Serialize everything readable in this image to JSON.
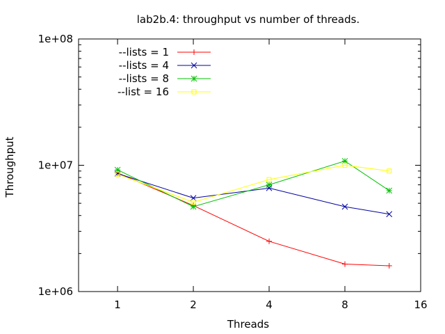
{
  "chart_data": {
    "type": "line",
    "title": "lab2b.4: throughput vs number of threads.",
    "xlabel": "Threads",
    "ylabel": "Throughput",
    "x_scale": "log2",
    "y_scale": "log10",
    "xlim": [
      0.7,
      16
    ],
    "ylim": [
      1000000,
      100000000
    ],
    "x_ticks": [
      1,
      2,
      4,
      8,
      16
    ],
    "x_tick_labels": [
      "1",
      "2",
      "4",
      "8",
      "16"
    ],
    "y_ticks": [
      1000000,
      10000000,
      100000000
    ],
    "y_tick_labels": [
      "1e+06",
      "1e+07",
      "1e+08"
    ],
    "grid": false,
    "legend_position": "top-left",
    "x": [
      1,
      2,
      4,
      8,
      12
    ],
    "series": [
      {
        "name": "--lists = 1",
        "color": "#ff0000",
        "marker": "plus",
        "values": [
          8700000,
          4800000,
          2500000,
          1650000,
          1600000
        ]
      },
      {
        "name": "--lists = 4",
        "color": "#0000a0",
        "marker": "cross",
        "values": [
          8600000,
          5500000,
          6600000,
          4700000,
          4100000
        ]
      },
      {
        "name": "--lists = 8",
        "color": "#00c000",
        "marker": "star",
        "values": [
          9200000,
          4700000,
          7000000,
          10800000,
          6300000
        ]
      },
      {
        "name": "--list = 16",
        "color": "#ffff00",
        "marker": "square",
        "values": [
          8500000,
          5100000,
          7700000,
          10000000,
          9000000
        ]
      }
    ]
  }
}
